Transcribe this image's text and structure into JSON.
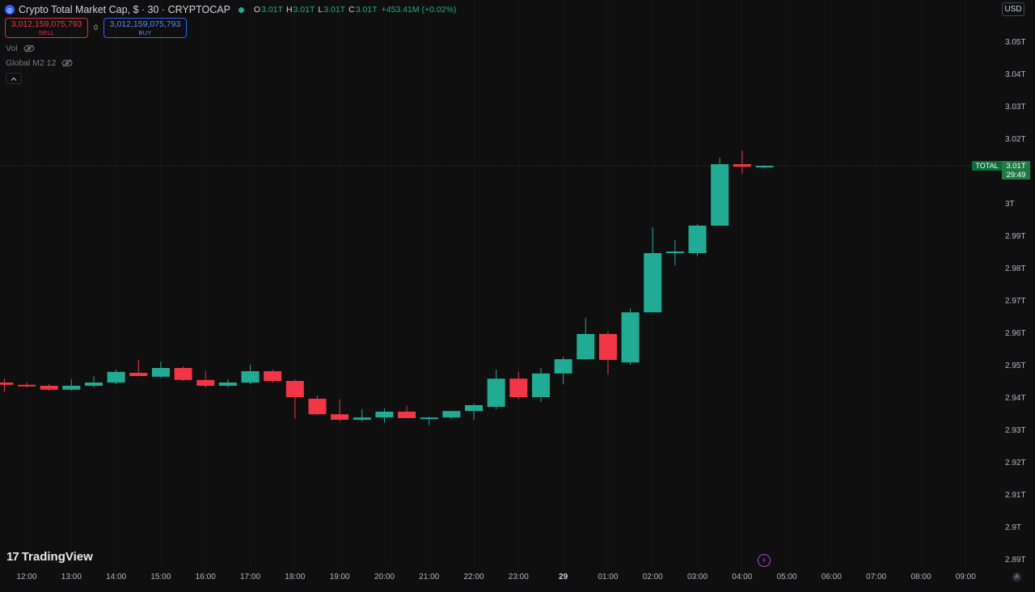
{
  "header": {
    "symbol_icon": "cryptocap-circle-icon",
    "title": "Crypto Total Market Cap, $ · 30 · CRYPTOCAP",
    "ohlc": {
      "o_label": "O",
      "o": "3.01T",
      "h_label": "H",
      "h": "3.01T",
      "l_label": "L",
      "l": "3.01T",
      "c_label": "C",
      "c": "3.01T"
    },
    "change": "+453.41M (+0.02%)"
  },
  "trade": {
    "sell_price": "3,012,159,075,793",
    "sell_label": "SELL",
    "spread": "0",
    "buy_price": "3,012,159,075,793",
    "buy_label": "BUY"
  },
  "indicators": [
    {
      "label": "Vol"
    },
    {
      "label": "Global M2 12"
    }
  ],
  "currency": "USD",
  "last_price": {
    "symbol": "TOTAL",
    "value": "3.01T",
    "countdown": "29:49"
  },
  "branding": "TradingView",
  "colors": {
    "up": "#22ab94",
    "down": "#f23645",
    "background": "#0f0f0f"
  },
  "chart_data": {
    "type": "candlestick",
    "interval": "30",
    "y_unit": "T",
    "ylim": [
      2.885,
      3.06
    ],
    "y_ticks": [
      "3.05T",
      "3.04T",
      "3.03T",
      "3.02T",
      "3.01T",
      "3T",
      "2.99T",
      "2.98T",
      "2.97T",
      "2.96T",
      "2.95T",
      "2.94T",
      "2.93T",
      "2.92T",
      "2.91T",
      "2.9T",
      "2.89T"
    ],
    "x_ticks": [
      "12:00",
      "13:00",
      "14:00",
      "15:00",
      "16:00",
      "17:00",
      "18:00",
      "19:00",
      "20:00",
      "21:00",
      "22:00",
      "23:00",
      "29",
      "01:00",
      "02:00",
      "03:00",
      "04:00",
      "05:00",
      "06:00",
      "07:00",
      "08:00",
      "09:00"
    ],
    "candles": [
      {
        "o": 2.945,
        "h": 2.9462,
        "l": 2.942,
        "c": 2.9443
      },
      {
        "o": 2.9443,
        "h": 2.945,
        "l": 2.9435,
        "c": 2.944
      },
      {
        "o": 2.944,
        "h": 2.9445,
        "l": 2.9425,
        "c": 2.9428
      },
      {
        "o": 2.9428,
        "h": 2.946,
        "l": 2.9425,
        "c": 2.944
      },
      {
        "o": 2.944,
        "h": 2.947,
        "l": 2.9435,
        "c": 2.945
      },
      {
        "o": 2.945,
        "h": 2.949,
        "l": 2.9445,
        "c": 2.9483
      },
      {
        "o": 2.948,
        "h": 2.952,
        "l": 2.947,
        "c": 2.947
      },
      {
        "o": 2.9468,
        "h": 2.9515,
        "l": 2.9465,
        "c": 2.9495
      },
      {
        "o": 2.9495,
        "h": 2.95,
        "l": 2.9455,
        "c": 2.9458
      },
      {
        "o": 2.9458,
        "h": 2.9485,
        "l": 2.9435,
        "c": 2.944
      },
      {
        "o": 2.944,
        "h": 2.946,
        "l": 2.9435,
        "c": 2.945
      },
      {
        "o": 2.945,
        "h": 2.9505,
        "l": 2.9445,
        "c": 2.9485
      },
      {
        "o": 2.9485,
        "h": 2.949,
        "l": 2.945,
        "c": 2.9455
      },
      {
        "o": 2.9455,
        "h": 2.946,
        "l": 2.9338,
        "c": 2.9405
      },
      {
        "o": 2.94,
        "h": 2.941,
        "l": 2.935,
        "c": 2.9352
      },
      {
        "o": 2.9352,
        "h": 2.9398,
        "l": 2.933,
        "c": 2.9335
      },
      {
        "o": 2.9335,
        "h": 2.9368,
        "l": 2.933,
        "c": 2.9342
      },
      {
        "o": 2.9342,
        "h": 2.937,
        "l": 2.9325,
        "c": 2.936
      },
      {
        "o": 2.936,
        "h": 2.9378,
        "l": 2.934,
        "c": 2.934
      },
      {
        "o": 2.934,
        "h": 2.9345,
        "l": 2.9318,
        "c": 2.9342
      },
      {
        "o": 2.9342,
        "h": 2.936,
        "l": 2.9338,
        "c": 2.9362
      },
      {
        "o": 2.9362,
        "h": 2.9385,
        "l": 2.9335,
        "c": 2.938
      },
      {
        "o": 2.9375,
        "h": 2.949,
        "l": 2.9368,
        "c": 2.9462
      },
      {
        "o": 2.9462,
        "h": 2.9483,
        "l": 2.9398,
        "c": 2.9405
      },
      {
        "o": 2.9405,
        "h": 2.9495,
        "l": 2.939,
        "c": 2.9478
      },
      {
        "o": 2.9478,
        "h": 2.953,
        "l": 2.9445,
        "c": 2.9522
      },
      {
        "o": 2.9522,
        "h": 2.965,
        "l": 2.952,
        "c": 2.96
      },
      {
        "o": 2.96,
        "h": 2.9608,
        "l": 2.9475,
        "c": 2.952
      },
      {
        "o": 2.9512,
        "h": 2.968,
        "l": 2.9505,
        "c": 2.9667
      },
      {
        "o": 2.9667,
        "h": 2.993,
        "l": 2.9667,
        "c": 2.985
      },
      {
        "o": 2.985,
        "h": 2.989,
        "l": 2.9812,
        "c": 2.9855
      },
      {
        "o": 2.985,
        "h": 2.994,
        "l": 2.984,
        "c": 2.9935
      },
      {
        "o": 2.9935,
        "h": 3.0145,
        "l": 2.9935,
        "c": 3.0125
      },
      {
        "o": 3.0125,
        "h": 3.0167,
        "l": 3.0095,
        "c": 3.0117
      },
      {
        "o": 3.0117,
        "h": 3.0122,
        "l": 3.0112,
        "c": 3.012
      }
    ]
  }
}
